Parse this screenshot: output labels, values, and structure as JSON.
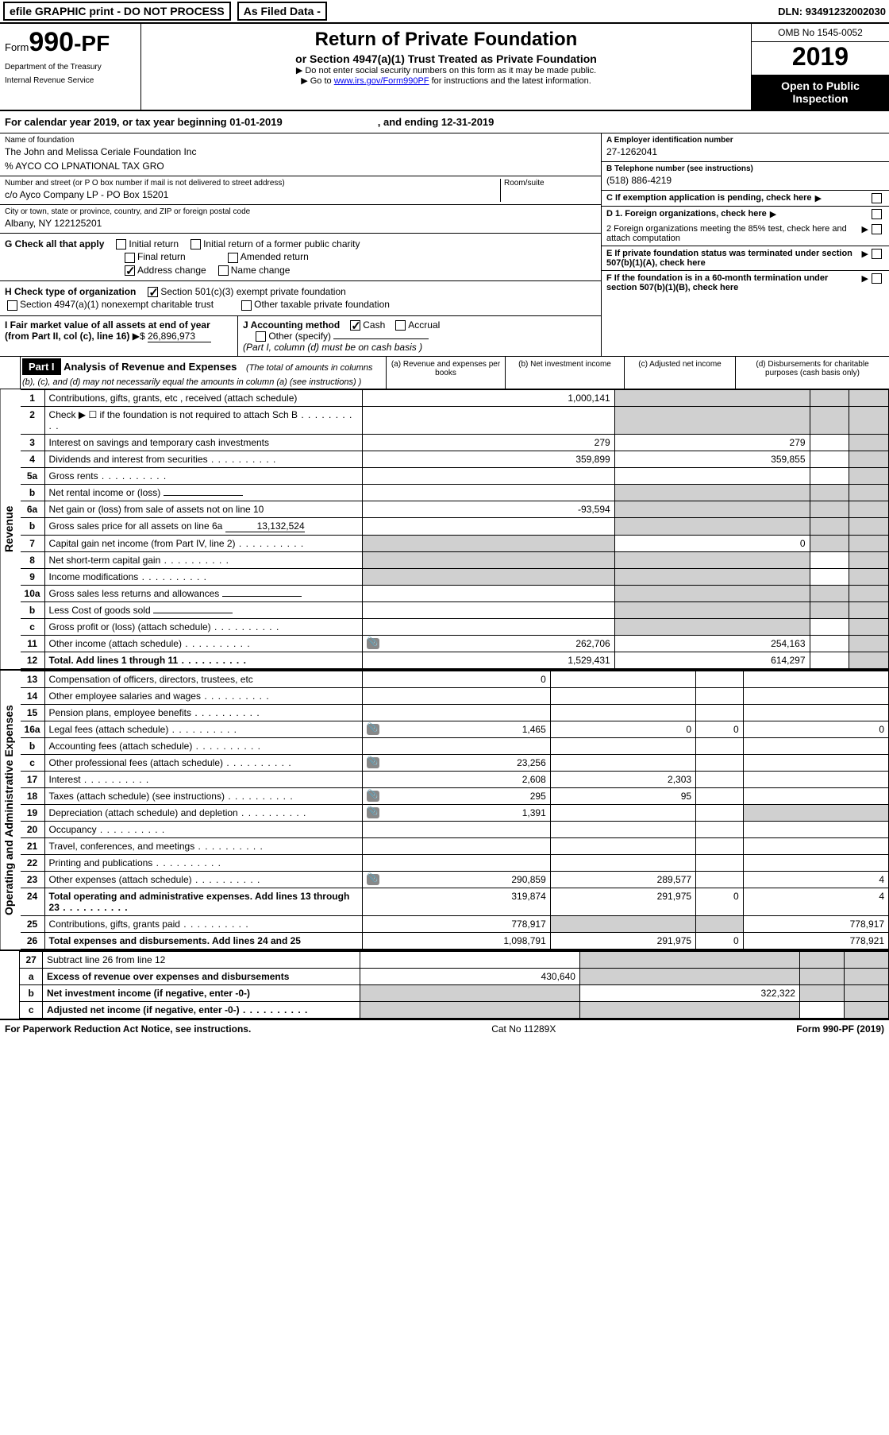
{
  "topbar": {
    "efile": "efile GRAPHIC print - DO NOT PROCESS",
    "asfiled": "As Filed Data -",
    "dln_label": "DLN:",
    "dln": "93491232002030"
  },
  "header": {
    "form_prefix": "Form",
    "form_num": "990-PF",
    "dept1": "Department of the Treasury",
    "dept2": "Internal Revenue Service",
    "title": "Return of Private Foundation",
    "subtitle": "or Section 4947(a)(1) Trust Treated as Private Foundation",
    "note1": "▶ Do not enter social security numbers on this form as it may be made public.",
    "note2_pre": "▶ Go to ",
    "note2_link": "www.irs.gov/Form990PF",
    "note2_post": " for instructions and the latest information.",
    "omb": "OMB No 1545-0052",
    "year": "2019",
    "inspect": "Open to Public Inspection"
  },
  "calendar": {
    "text": "For calendar year 2019, or tax year beginning 01-01-2019",
    "ending": ", and ending 12-31-2019"
  },
  "name": {
    "label": "Name of foundation",
    "line1": "The John and Melissa Ceriale Foundation Inc",
    "line2": "% AYCO CO LPNATIONAL TAX GRO"
  },
  "address": {
    "label": "Number and street (or P O  box number if mail is not delivered to street address)",
    "val": "c/o Ayco Company LP - PO Box 15201",
    "room_label": "Room/suite"
  },
  "city": {
    "label": "City or town, state or province, country, and ZIP or foreign postal code",
    "val": "Albany, NY  122125201"
  },
  "ein": {
    "label": "A Employer identification number",
    "val": "27-1262041"
  },
  "tel": {
    "label": "B Telephone number (see instructions)",
    "val": "(518) 886-4219"
  },
  "c": {
    "label": "C  If exemption application is pending, check here"
  },
  "g": {
    "label": "G Check all that apply",
    "initial": "Initial return",
    "initial_former": "Initial return of a former public charity",
    "final": "Final return",
    "amended": "Amended return",
    "address": "Address change",
    "name_change": "Name change"
  },
  "d": {
    "d1": "D 1. Foreign organizations, check here",
    "d2": "2  Foreign organizations meeting the 85% test, check here and attach computation"
  },
  "e": {
    "label": "E  If private foundation status was terminated under section 507(b)(1)(A), check here"
  },
  "f": {
    "label": "F  If the foundation is in a 60-month termination under section 507(b)(1)(B), check here"
  },
  "h": {
    "label": "H Check type of organization",
    "opt1": "Section 501(c)(3) exempt private foundation",
    "opt2": "Section 4947(a)(1) nonexempt charitable trust",
    "opt3": "Other taxable private foundation"
  },
  "i": {
    "label": "I Fair market value of all assets at end of year (from Part II, col  (c), line 16)",
    "arrow": "▶$",
    "val": "26,896,973"
  },
  "j": {
    "label": "J Accounting method",
    "cash": "Cash",
    "accrual": "Accrual",
    "other": "Other (specify)",
    "note": "(Part I, column (d) must be on cash basis )"
  },
  "part1": {
    "tag": "Part I",
    "title": "Analysis of Revenue and Expenses",
    "note": " (The total of amounts in columns (b), (c), and (d) may not necessarily equal the amounts in column (a) (see instructions) )",
    "col_a": "(a)   Revenue and expenses per books",
    "col_b": "(b)   Net investment income",
    "col_c": "(c)   Adjusted net income",
    "col_d": "(d)   Disbursements for charitable purposes (cash basis only)"
  },
  "vlabels": {
    "revenue": "Revenue",
    "expenses": "Operating and Administrative Expenses"
  },
  "rows": [
    {
      "n": "1",
      "d": "Contributions, gifts, grants, etc , received (attach schedule)",
      "a": "1,000,141",
      "b": "",
      "c": "",
      "dd": "",
      "greyB": true,
      "greyC": true,
      "greyD": true
    },
    {
      "n": "2",
      "d": "Check ▶ ☐ if the foundation is not required to attach Sch  B",
      "a": "",
      "b": "",
      "c": "",
      "dd": "",
      "greyB": true,
      "greyC": true,
      "greyD": true,
      "dots": true
    },
    {
      "n": "3",
      "d": "Interest on savings and temporary cash investments",
      "a": "279",
      "b": "279",
      "c": "",
      "dd": "",
      "greyD": true
    },
    {
      "n": "4",
      "d": "Dividends and interest from securities",
      "a": "359,899",
      "b": "359,855",
      "c": "",
      "dd": "",
      "greyD": true,
      "dots": true
    },
    {
      "n": "5a",
      "d": "Gross rents",
      "a": "",
      "b": "",
      "c": "",
      "dd": "",
      "greyD": true,
      "dots": true
    },
    {
      "n": "b",
      "d": "Net rental income or (loss)",
      "a": "",
      "b": "",
      "c": "",
      "dd": "",
      "greyA": false,
      "greyB": true,
      "greyC": true,
      "greyD": true,
      "inline": true
    },
    {
      "n": "6a",
      "d": "Net gain or (loss) from sale of assets not on line 10",
      "a": "-93,594",
      "b": "",
      "c": "",
      "dd": "",
      "greyB": true,
      "greyC": true,
      "greyD": true
    },
    {
      "n": "b",
      "d": "Gross sales price for all assets on line 6a",
      "a": "",
      "b": "",
      "c": "",
      "dd": "",
      "greyB": true,
      "greyC": true,
      "greyD": true,
      "inline": true,
      "inlineVal": "13,132,524"
    },
    {
      "n": "7",
      "d": "Capital gain net income (from Part IV, line 2)",
      "a": "",
      "b": "0",
      "c": "",
      "dd": "",
      "greyA": true,
      "greyC": true,
      "greyD": true,
      "dots": true
    },
    {
      "n": "8",
      "d": "Net short-term capital gain",
      "a": "",
      "b": "",
      "c": "",
      "dd": "",
      "greyA": true,
      "greyB": true,
      "greyD": true,
      "dots": true
    },
    {
      "n": "9",
      "d": "Income modifications",
      "a": "",
      "b": "",
      "c": "",
      "dd": "",
      "greyA": true,
      "greyB": true,
      "greyD": true,
      "dots": true
    },
    {
      "n": "10a",
      "d": "Gross sales less returns and allowances",
      "a": "",
      "b": "",
      "c": "",
      "dd": "",
      "greyB": true,
      "greyC": true,
      "greyD": true,
      "inline": true
    },
    {
      "n": "b",
      "d": "Less  Cost of goods sold",
      "a": "",
      "b": "",
      "c": "",
      "dd": "",
      "greyB": true,
      "greyC": true,
      "greyD": true,
      "inline": true,
      "dots": true
    },
    {
      "n": "c",
      "d": "Gross profit or (loss) (attach schedule)",
      "a": "",
      "b": "",
      "c": "",
      "dd": "",
      "greyB": true,
      "greyD": true,
      "dots": true
    },
    {
      "n": "11",
      "d": "Other income (attach schedule)",
      "a": "262,706",
      "b": "254,163",
      "c": "",
      "dd": "",
      "greyD": true,
      "dots": true,
      "attach": true
    },
    {
      "n": "12",
      "d": "Total. Add lines 1 through 11",
      "a": "1,529,431",
      "b": "614,297",
      "c": "",
      "dd": "",
      "greyD": true,
      "dots": true,
      "bold": true
    }
  ],
  "exp_rows": [
    {
      "n": "13",
      "d": "Compensation of officers, directors, trustees, etc",
      "a": "0",
      "b": "",
      "c": "",
      "dd": ""
    },
    {
      "n": "14",
      "d": "Other employee salaries and wages",
      "a": "",
      "b": "",
      "c": "",
      "dd": "",
      "dots": true
    },
    {
      "n": "15",
      "d": "Pension plans, employee benefits",
      "a": "",
      "b": "",
      "c": "",
      "dd": "",
      "dots": true
    },
    {
      "n": "16a",
      "d": "Legal fees (attach schedule)",
      "a": "1,465",
      "b": "0",
      "c": "0",
      "dd": "0",
      "dots": true,
      "attach": true
    },
    {
      "n": "b",
      "d": "Accounting fees (attach schedule)",
      "a": "",
      "b": "",
      "c": "",
      "dd": "",
      "dots": true
    },
    {
      "n": "c",
      "d": "Other professional fees (attach schedule)",
      "a": "23,256",
      "b": "",
      "c": "",
      "dd": "",
      "dots": true,
      "attach": true
    },
    {
      "n": "17",
      "d": "Interest",
      "a": "2,608",
      "b": "2,303",
      "c": "",
      "dd": "",
      "dots": true
    },
    {
      "n": "18",
      "d": "Taxes (attach schedule) (see instructions)",
      "a": "295",
      "b": "95",
      "c": "",
      "dd": "",
      "dots": true,
      "attach": true
    },
    {
      "n": "19",
      "d": "Depreciation (attach schedule) and depletion",
      "a": "1,391",
      "b": "",
      "c": "",
      "dd": "",
      "dots": true,
      "greyD": true,
      "attach": true
    },
    {
      "n": "20",
      "d": "Occupancy",
      "a": "",
      "b": "",
      "c": "",
      "dd": "",
      "dots": true
    },
    {
      "n": "21",
      "d": "Travel, conferences, and meetings",
      "a": "",
      "b": "",
      "c": "",
      "dd": "",
      "dots": true
    },
    {
      "n": "22",
      "d": "Printing and publications",
      "a": "",
      "b": "",
      "c": "",
      "dd": "",
      "dots": true
    },
    {
      "n": "23",
      "d": "Other expenses (attach schedule)",
      "a": "290,859",
      "b": "289,577",
      "c": "",
      "dd": "4",
      "dots": true,
      "attach": true
    },
    {
      "n": "24",
      "d": "Total operating and administrative expenses. Add lines 13 through 23",
      "a": "319,874",
      "b": "291,975",
      "c": "0",
      "dd": "4",
      "dots": true,
      "bold": true
    },
    {
      "n": "25",
      "d": "Contributions, gifts, grants paid",
      "a": "778,917",
      "b": "",
      "c": "",
      "dd": "778,917",
      "dots": true,
      "greyB": true,
      "greyC": true
    },
    {
      "n": "26",
      "d": "Total expenses and disbursements. Add lines 24 and 25",
      "a": "1,098,791",
      "b": "291,975",
      "c": "0",
      "dd": "778,921",
      "bold": true
    }
  ],
  "bottom_rows": [
    {
      "n": "27",
      "d": "Subtract line 26 from line 12",
      "a": "",
      "b": "",
      "c": "",
      "dd": "",
      "greyB": true,
      "greyC": true,
      "greyD": true
    },
    {
      "n": "a",
      "d": "Excess of revenue over expenses and disbursements",
      "a": "430,640",
      "b": "",
      "c": "",
      "dd": "",
      "bold": true,
      "greyB": true,
      "greyC": true,
      "greyD": true
    },
    {
      "n": "b",
      "d": "Net investment income (if negative, enter -0-)",
      "a": "",
      "b": "322,322",
      "c": "",
      "dd": "",
      "bold": true,
      "greyA": true,
      "greyC": true,
      "greyD": true
    },
    {
      "n": "c",
      "d": "Adjusted net income (if negative, enter -0-)",
      "a": "",
      "b": "",
      "c": "",
      "dd": "",
      "bold": true,
      "greyA": true,
      "greyB": true,
      "greyD": true,
      "dots": true
    }
  ],
  "footer": {
    "left": "For Paperwork Reduction Act Notice, see instructions.",
    "mid": "Cat  No  11289X",
    "right": "Form 990-PF (2019)"
  }
}
